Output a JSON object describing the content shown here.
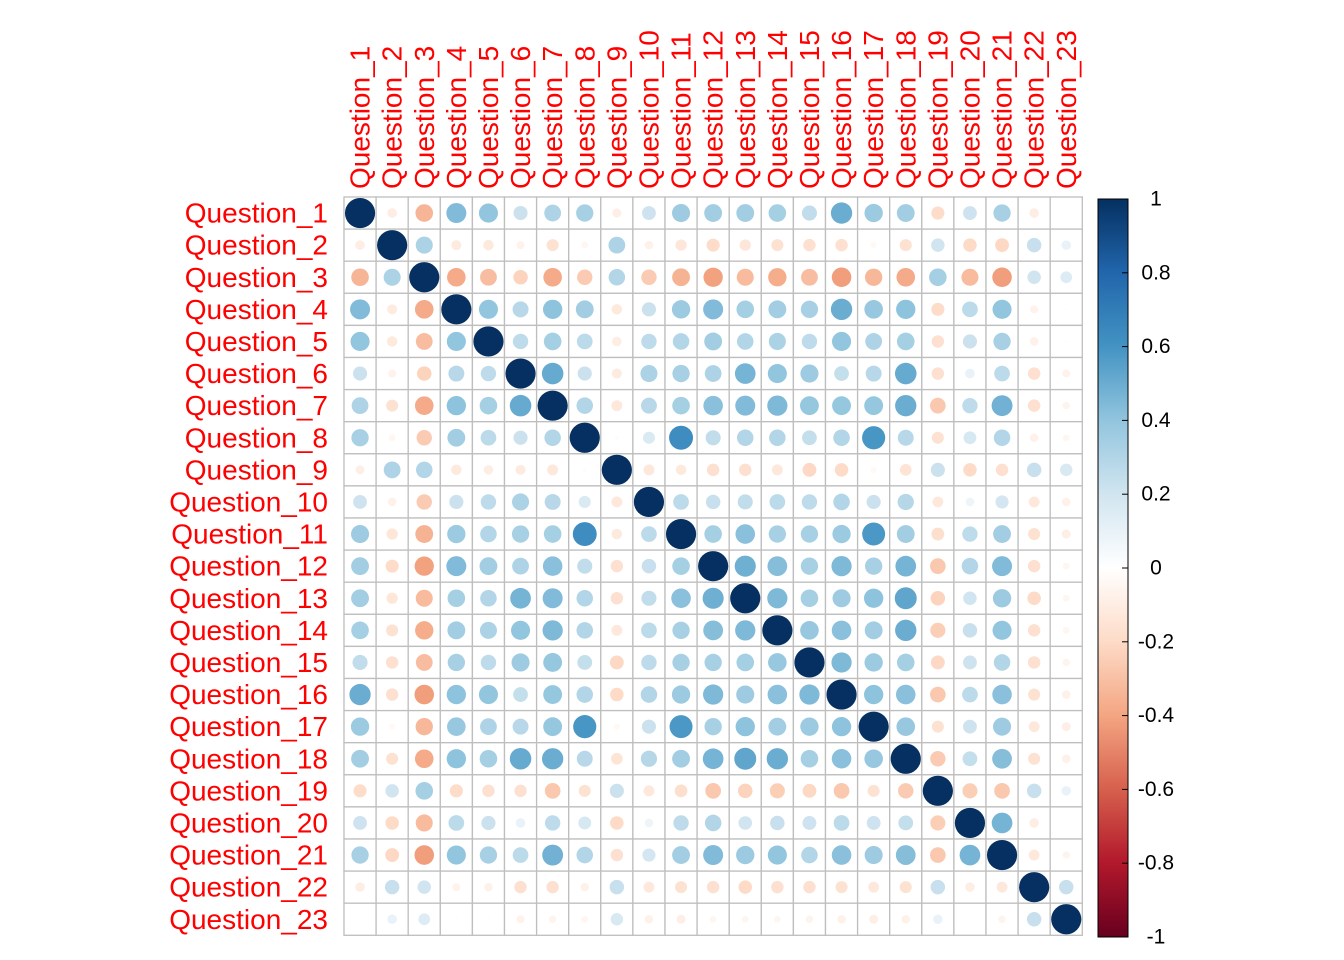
{
  "chart_data": {
    "type": "heatmap",
    "variables": [
      "Question_1",
      "Question_2",
      "Question_3",
      "Question_4",
      "Question_5",
      "Question_6",
      "Question_7",
      "Question_8",
      "Question_9",
      "Question_10",
      "Question_11",
      "Question_12",
      "Question_13",
      "Question_14",
      "Question_15",
      "Question_16",
      "Question_17",
      "Question_18",
      "Question_19",
      "Question_20",
      "Question_21",
      "Question_22",
      "Question_23"
    ],
    "matrix": [
      [
        1.0,
        -0.1,
        -0.34,
        0.44,
        0.4,
        0.22,
        0.31,
        0.33,
        -0.09,
        0.21,
        0.36,
        0.35,
        0.35,
        0.34,
        0.25,
        0.5,
        0.37,
        0.35,
        -0.19,
        0.21,
        0.33,
        -0.1,
        -0.0
      ],
      [
        -0.1,
        1.0,
        0.32,
        -0.11,
        -0.12,
        -0.07,
        -0.16,
        -0.05,
        0.31,
        -0.08,
        -0.14,
        -0.19,
        -0.14,
        -0.16,
        -0.17,
        -0.17,
        -0.04,
        -0.16,
        0.2,
        -0.2,
        -0.21,
        0.23,
        0.1
      ],
      [
        -0.34,
        0.32,
        1.0,
        -0.38,
        -0.31,
        -0.23,
        -0.38,
        -0.26,
        0.3,
        -0.26,
        -0.35,
        -0.41,
        -0.32,
        -0.37,
        -0.31,
        -0.42,
        -0.33,
        -0.38,
        0.34,
        -0.32,
        -0.42,
        0.2,
        0.15
      ],
      [
        0.44,
        -0.11,
        -0.38,
        1.0,
        0.4,
        0.28,
        0.41,
        0.35,
        -0.12,
        0.22,
        0.37,
        0.44,
        0.34,
        0.35,
        0.33,
        0.5,
        0.38,
        0.41,
        -0.19,
        0.27,
        0.4,
        -0.07,
        -0.01
      ],
      [
        0.4,
        -0.12,
        -0.31,
        0.4,
        1.0,
        0.26,
        0.34,
        0.27,
        -0.1,
        0.26,
        0.3,
        0.35,
        0.3,
        0.32,
        0.26,
        0.4,
        0.31,
        0.34,
        -0.17,
        0.22,
        0.33,
        -0.08,
        -0.01
      ],
      [
        0.22,
        -0.07,
        -0.23,
        0.28,
        0.26,
        1.0,
        0.51,
        0.22,
        -0.11,
        0.32,
        0.33,
        0.31,
        0.47,
        0.4,
        0.36,
        0.24,
        0.28,
        0.51,
        -0.17,
        0.1,
        0.27,
        -0.17,
        -0.07
      ],
      [
        0.31,
        -0.16,
        -0.38,
        0.41,
        0.34,
        0.51,
        1.0,
        0.3,
        -0.13,
        0.28,
        0.34,
        0.42,
        0.44,
        0.45,
        0.39,
        0.39,
        0.39,
        0.5,
        -0.27,
        0.26,
        0.48,
        -0.17,
        -0.06
      ],
      [
        0.33,
        -0.05,
        -0.26,
        0.35,
        0.27,
        0.22,
        0.3,
        1.0,
        0.02,
        0.16,
        0.63,
        0.25,
        0.3,
        0.3,
        0.24,
        0.3,
        0.59,
        0.28,
        -0.16,
        0.18,
        0.3,
        -0.08,
        -0.05
      ],
      [
        -0.09,
        0.31,
        0.3,
        -0.12,
        -0.1,
        -0.11,
        -0.13,
        0.02,
        1.0,
        -0.13,
        -0.12,
        -0.17,
        -0.17,
        -0.13,
        -0.21,
        -0.2,
        -0.04,
        -0.15,
        0.22,
        -0.2,
        -0.17,
        0.23,
        0.17
      ],
      [
        0.21,
        -0.08,
        -0.26,
        0.22,
        0.26,
        0.32,
        0.28,
        0.16,
        -0.13,
        1.0,
        0.27,
        0.23,
        0.25,
        0.27,
        0.26,
        0.3,
        0.22,
        0.29,
        -0.13,
        0.08,
        0.19,
        -0.13,
        -0.08
      ],
      [
        0.36,
        -0.14,
        -0.35,
        0.37,
        0.3,
        0.33,
        0.34,
        0.63,
        -0.12,
        0.27,
        1.0,
        0.34,
        0.42,
        0.33,
        0.33,
        0.37,
        0.58,
        0.35,
        -0.18,
        0.26,
        0.35,
        -0.16,
        -0.09
      ],
      [
        0.35,
        -0.19,
        -0.41,
        0.44,
        0.35,
        0.31,
        0.42,
        0.25,
        -0.17,
        0.23,
        0.34,
        1.0,
        0.49,
        0.43,
        0.33,
        0.45,
        0.33,
        0.47,
        -0.27,
        0.3,
        0.44,
        -0.17,
        -0.05
      ],
      [
        0.35,
        -0.14,
        -0.32,
        0.34,
        0.3,
        0.47,
        0.44,
        0.3,
        -0.17,
        0.25,
        0.42,
        0.49,
        1.0,
        0.45,
        0.34,
        0.36,
        0.41,
        0.53,
        -0.23,
        0.2,
        0.37,
        -0.2,
        -0.05
      ],
      [
        0.34,
        -0.16,
        -0.37,
        0.35,
        0.32,
        0.4,
        0.45,
        0.3,
        -0.13,
        0.27,
        0.33,
        0.43,
        0.45,
        1.0,
        0.38,
        0.42,
        0.35,
        0.5,
        -0.25,
        0.23,
        0.4,
        -0.17,
        -0.05
      ],
      [
        0.25,
        -0.17,
        -0.31,
        0.33,
        0.26,
        0.36,
        0.39,
        0.24,
        -0.21,
        0.26,
        0.33,
        0.33,
        0.34,
        0.38,
        1.0,
        0.45,
        0.37,
        0.34,
        -0.21,
        0.21,
        0.3,
        -0.17,
        -0.06
      ],
      [
        0.5,
        -0.17,
        -0.42,
        0.41,
        0.4,
        0.24,
        0.39,
        0.3,
        -0.2,
        0.3,
        0.37,
        0.45,
        0.36,
        0.42,
        0.45,
        1.0,
        0.41,
        0.42,
        -0.27,
        0.27,
        0.42,
        -0.16,
        -0.08
      ],
      [
        0.37,
        -0.04,
        -0.33,
        0.38,
        0.31,
        0.28,
        0.39,
        0.59,
        -0.04,
        0.22,
        0.58,
        0.33,
        0.41,
        0.35,
        0.37,
        0.41,
        1.0,
        0.38,
        -0.16,
        0.21,
        0.36,
        -0.13,
        -0.09
      ],
      [
        0.35,
        -0.16,
        -0.38,
        0.41,
        0.34,
        0.51,
        0.5,
        0.28,
        -0.15,
        0.29,
        0.35,
        0.47,
        0.53,
        0.5,
        0.34,
        0.42,
        0.38,
        1.0,
        -0.26,
        0.24,
        0.43,
        -0.16,
        -0.08
      ],
      [
        -0.19,
        0.2,
        0.34,
        -0.19,
        -0.17,
        -0.17,
        -0.27,
        -0.16,
        0.22,
        -0.13,
        -0.18,
        -0.27,
        -0.23,
        -0.25,
        -0.21,
        -0.27,
        -0.16,
        -0.26,
        1.0,
        -0.25,
        -0.27,
        0.23,
        0.1
      ],
      [
        0.21,
        -0.2,
        -0.32,
        0.27,
        0.22,
        0.1,
        0.26,
        0.18,
        -0.2,
        0.08,
        0.26,
        0.3,
        0.2,
        0.23,
        0.21,
        0.27,
        0.21,
        0.24,
        -0.25,
        1.0,
        0.47,
        -0.1,
        0.0
      ],
      [
        0.33,
        -0.21,
        -0.42,
        0.4,
        0.33,
        0.27,
        0.48,
        0.3,
        -0.17,
        0.19,
        0.35,
        0.44,
        0.37,
        0.4,
        0.3,
        0.42,
        0.36,
        0.43,
        -0.27,
        0.47,
        1.0,
        -0.13,
        -0.06
      ],
      [
        -0.1,
        0.23,
        0.2,
        -0.07,
        -0.08,
        -0.17,
        -0.17,
        -0.08,
        0.23,
        -0.13,
        -0.16,
        -0.17,
        -0.2,
        -0.17,
        -0.17,
        -0.16,
        -0.13,
        -0.16,
        0.23,
        -0.1,
        -0.13,
        1.0,
        0.23
      ],
      [
        -0.0,
        0.1,
        0.15,
        -0.01,
        -0.01,
        -0.07,
        -0.06,
        -0.05,
        0.17,
        -0.08,
        -0.09,
        -0.05,
        -0.05,
        -0.05,
        -0.06,
        -0.08,
        -0.09,
        -0.08,
        0.1,
        0.0,
        -0.06,
        0.23,
        1.0
      ]
    ],
    "colorbar": {
      "ticks": [
        "1",
        "0.8",
        "0.6",
        "0.4",
        "0.2",
        "0",
        "-0.2",
        "-0.4",
        "-0.6",
        "-0.8",
        "-1"
      ],
      "range": [
        -1,
        1
      ],
      "colors": [
        "#67001F",
        "#B2182B",
        "#D6604D",
        "#F4A582",
        "#FDDBC7",
        "#FFFFFF",
        "#D1E5F0",
        "#92C5DE",
        "#4393C3",
        "#2166AC",
        "#053061"
      ]
    },
    "label_color": "#FF0000",
    "grid_color": "#BEBEBE"
  }
}
